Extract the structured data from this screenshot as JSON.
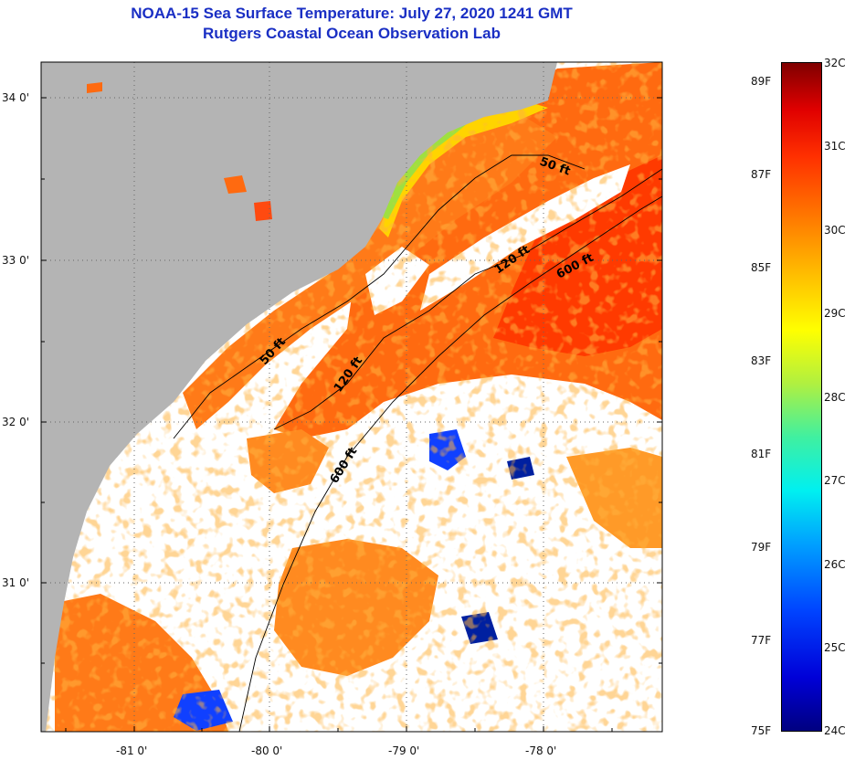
{
  "title": {
    "line1": "NOAA-15 Sea Surface Temperature:  July 27, 2020 1241 GMT",
    "line2": "Rutgers Coastal Ocean Observation Lab"
  },
  "map": {
    "lat_labels": [
      "34 0'",
      "33 0'",
      "32 0'",
      "31 0'"
    ],
    "lon_labels": [
      "-81 0'",
      "-80 0'",
      "-79 0'",
      "-78 0'"
    ],
    "contour_labels": [
      "50 ft",
      "120 ft",
      "600 ft",
      "50 ft",
      "120 ft",
      "600 ft"
    ],
    "colors": {
      "land": "#b4b4b4",
      "cloud": "#ffffff",
      "warm": "#ff6a10",
      "hot": "#ff3a00",
      "mid": "#ffcc00",
      "cool": "#1040ff"
    }
  },
  "colorbar": {
    "fahrenheit_labels": [
      "89F",
      "87F",
      "85F",
      "83F",
      "81F",
      "79F",
      "77F",
      "75F"
    ],
    "celsius_labels": [
      "32C",
      "31C",
      "30C",
      "29C",
      "28C",
      "27C",
      "26C",
      "25C",
      "24C"
    ]
  }
}
